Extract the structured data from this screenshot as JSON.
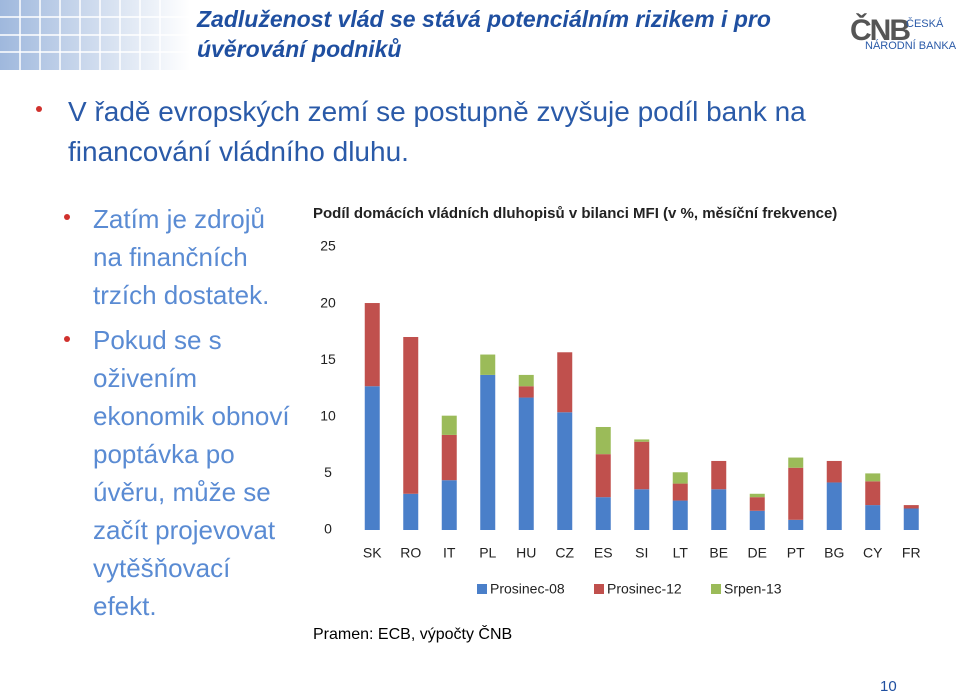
{
  "slide": {
    "title": "Zadluženost vlád se stává potenciálním rizikem i pro úvěrování podniků",
    "logo": {
      "mark": "ČNB",
      "line1": "ČESKÁ",
      "line2": "NÁRODNÍ BANKA"
    },
    "bullet": "V řadě evropských zemí se postupně zvyšuje podíl bank na financování vládního dluhu.",
    "sub_bullets": [
      "Zatím je zdrojů na finančních trzích dostatek.",
      "Pokud se s oživením ekonomik obnoví poptávka po úvěru, může se začít projevovat vytěšňovací efekt."
    ],
    "source": "Pramen: ECB, výpočty ČNB",
    "page_number": "10"
  },
  "chart_data": {
    "type": "stacked_bar",
    "title": "Podíl domácích vládních dluhopisů v bilanci MFI (v %, měsíční frekvence)",
    "categories": [
      "SK",
      "RO",
      "IT",
      "PL",
      "HU",
      "CZ",
      "ES",
      "SI",
      "LT",
      "BE",
      "DE",
      "PT",
      "BG",
      "CY",
      "FR"
    ],
    "series": [
      {
        "name": "Prosinec-08",
        "color": "#4a7fc9",
        "values": [
          12.7,
          3.2,
          4.4,
          13.7,
          11.7,
          10.4,
          2.9,
          3.6,
          2.6,
          3.6,
          1.7,
          0.9,
          4.2,
          2.2,
          1.9
        ]
      },
      {
        "name": "Prosinec-12",
        "color": "#c0504d",
        "values": [
          7.35,
          13.85,
          4.0,
          0,
          1.0,
          5.3,
          3.8,
          4.2,
          1.5,
          2.5,
          1.2,
          4.6,
          1.9,
          2.1,
          0.3
        ]
      },
      {
        "name": "Srpen-13",
        "color": "#9bbb59",
        "values": [
          0,
          0,
          1.7,
          1.8,
          1.0,
          0,
          2.4,
          0.2,
          1.0,
          0,
          0.3,
          0.9,
          0,
          0.7,
          0
        ]
      }
    ],
    "ylim": [
      0,
      25
    ],
    "yticks": [
      0,
      5,
      10,
      15,
      20,
      25
    ]
  }
}
